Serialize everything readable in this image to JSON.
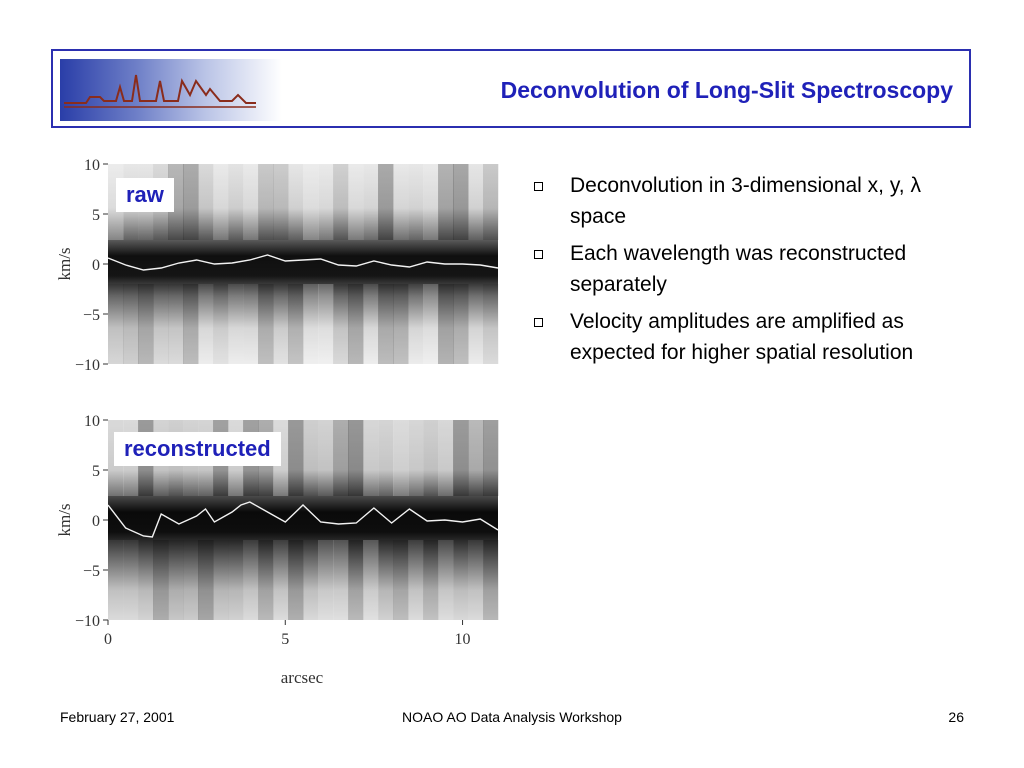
{
  "header": {
    "title": "Deconvolution of Long-Slit Spectroscopy",
    "logo_icon": "mountain-skyline-logo",
    "frame_color": "#2b2fb0",
    "title_color": "#1f21b8"
  },
  "plots": {
    "raw_label": "raw",
    "reconstructed_label": "reconstructed",
    "y_axis_label": "km/s",
    "x_axis_label": "arcsec",
    "y_ticks": [
      "10",
      "5",
      "0",
      "−5",
      "−10"
    ],
    "x_ticks": [
      "0",
      "5",
      "10"
    ]
  },
  "chart_data": [
    {
      "type": "heatmap",
      "title": "raw",
      "xlabel": "",
      "ylabel": "km/s",
      "xlim": [
        0,
        11
      ],
      "ylim": [
        -10,
        10
      ],
      "yticks": [
        10,
        5,
        0,
        -5,
        -10
      ],
      "grid": false,
      "series": [
        {
          "x": [
            0,
            0.5,
            1,
            1.5,
            2,
            2.5,
            3,
            3.5,
            4,
            4.5,
            5,
            5.5,
            6,
            6.5,
            7,
            7.5,
            8,
            8.5,
            9,
            9.5,
            10,
            10.5,
            11
          ],
          "y": [
            0.6,
            -0.1,
            -0.6,
            -0.4,
            0.1,
            0.4,
            0.0,
            0.1,
            0.4,
            0.9,
            0.3,
            0.4,
            0.5,
            -0.1,
            -0.2,
            0.3,
            -0.1,
            -0.3,
            0.2,
            0.0,
            0.0,
            -0.1,
            -0.4
          ]
        }
      ]
    },
    {
      "type": "heatmap",
      "title": "reconstructed",
      "xlabel": "arcsec",
      "ylabel": "km/s",
      "xlim": [
        0,
        11
      ],
      "xticks": [
        0,
        5,
        10
      ],
      "ylim": [
        -10,
        10
      ],
      "yticks": [
        10,
        5,
        0,
        -5,
        -10
      ],
      "grid": false,
      "series": [
        {
          "x": [
            0,
            0.5,
            1,
            1.25,
            1.5,
            2,
            2.5,
            2.75,
            3,
            3.5,
            3.75,
            4,
            4.5,
            5,
            5.5,
            6,
            6.5,
            7,
            7.5,
            8,
            8.5,
            9,
            9.5,
            10,
            10.5,
            11
          ],
          "y": [
            1.5,
            -0.8,
            -1.6,
            -1.7,
            0.6,
            -0.4,
            0.4,
            1.1,
            -0.2,
            0.8,
            1.5,
            1.8,
            0.8,
            -0.2,
            1.5,
            -0.2,
            -0.4,
            -0.3,
            1.2,
            -0.3,
            1.1,
            -0.1,
            0.0,
            -0.2,
            0.1,
            -1.0
          ]
        }
      ]
    }
  ],
  "bullets": [
    {
      "text": "Deconvolution in 3-dimensional x, y, λ space"
    },
    {
      "text": "Each wavelength was reconstructed separately"
    },
    {
      "text": "Velocity amplitudes are amplified as expected for higher spatial resolution"
    }
  ],
  "footer": {
    "date": "February 27, 2001",
    "event": "NOAO AO Data Analysis Workshop",
    "page": "26"
  }
}
